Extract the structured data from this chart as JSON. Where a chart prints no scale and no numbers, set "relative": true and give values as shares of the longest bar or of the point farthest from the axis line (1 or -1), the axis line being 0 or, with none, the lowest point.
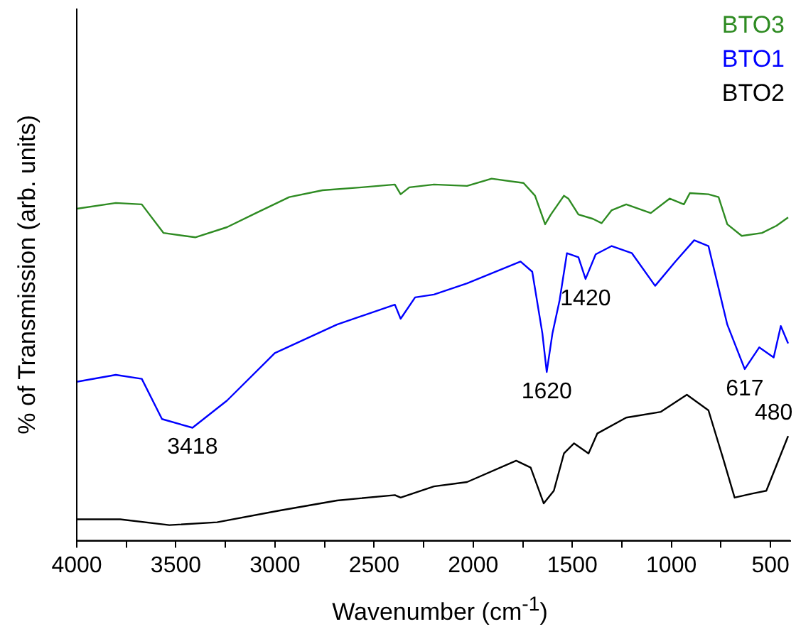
{
  "chart_data": {
    "type": "line",
    "xlabel": "Wavenumber (cm$^{-1}$)",
    "ylabel": "% of Transmission (arb. units)",
    "relative": true,
    "legend": "top right",
    "marker": "none",
    "line_style": "solid",
    "grid": false,
    "xlim": [
      4000,
      400
    ],
    "xticks": [
      4000,
      {
        "value": 3750,
        "label": null
      },
      3500,
      {
        "value": 3250,
        "label": null
      },
      3000,
      {
        "value": 2750,
        "label": null
      },
      2500,
      {
        "value": 2250,
        "label": null
      },
      2000,
      {
        "value": 1750,
        "label": null
      },
      1500,
      {
        "value": 1250,
        "label": null
      },
      1000,
      {
        "value": 750,
        "label": null
      },
      500
    ],
    "series": [
      {
        "name": "BTO3",
        "color": "#2e8b22",
        "x": [
          4000,
          3803,
          3672,
          3562,
          3402,
          3242,
          3096,
          2928,
          2760,
          2563,
          2395,
          2366,
          2322,
          2198,
          2031,
          1907,
          1746,
          1688,
          1637,
          1608,
          1542,
          1520,
          1469,
          1396,
          1352,
          1301,
          1228,
          1104,
          1009,
          937,
          907,
          813,
          762,
          718,
          645,
          543,
          470,
          411
        ],
        "values": [
          0.917,
          0.933,
          0.929,
          0.85,
          0.838,
          0.866,
          0.905,
          0.949,
          0.968,
          0.976,
          0.984,
          0.957,
          0.976,
          0.984,
          0.98,
          1,
          0.988,
          0.953,
          0.874,
          0.901,
          0.953,
          0.945,
          0.901,
          0.889,
          0.877,
          0.913,
          0.929,
          0.905,
          0.945,
          0.929,
          0.96,
          0.957,
          0.949,
          0.874,
          0.842,
          0.85,
          0.87,
          0.893
        ]
      },
      {
        "name": "BTO1",
        "color": "#0000ff",
        "x": [
          4000,
          3803,
          3672,
          3570,
          3416,
          3242,
          3001,
          2687,
          2395,
          2366,
          2293,
          2198,
          2031,
          1761,
          1702,
          1651,
          1629,
          1600,
          1564,
          1527,
          1469,
          1433,
          1382,
          1301,
          1199,
          1082,
          980,
          885,
          813,
          718,
          630,
          557,
          484,
          448,
          411
        ],
        "values": [
          0.439,
          0.458,
          0.447,
          0.336,
          0.312,
          0.387,
          0.518,
          0.597,
          0.652,
          0.613,
          0.672,
          0.68,
          0.711,
          0.771,
          0.743,
          0.573,
          0.466,
          0.573,
          0.664,
          0.794,
          0.783,
          0.723,
          0.791,
          0.814,
          0.794,
          0.704,
          0.771,
          0.83,
          0.814,
          0.597,
          0.474,
          0.534,
          0.506,
          0.593,
          0.545
        ]
      },
      {
        "name": "BTO2",
        "color": "#000000",
        "x": [
          4000,
          3781,
          3533,
          3292,
          2979,
          2687,
          2395,
          2366,
          2198,
          2031,
          1783,
          1710,
          1644,
          1593,
          1542,
          1491,
          1418,
          1374,
          1228,
          1053,
          922,
          813,
          740,
          681,
          594,
          521,
          411
        ],
        "values": [
          0.059,
          0.059,
          0.043,
          0.051,
          0.083,
          0.111,
          0.126,
          0.119,
          0.15,
          0.162,
          0.221,
          0.202,
          0.103,
          0.138,
          0.241,
          0.269,
          0.241,
          0.296,
          0.34,
          0.356,
          0.403,
          0.36,
          0.229,
          0.119,
          0.13,
          0.138,
          0.289
        ]
      }
    ],
    "annotations": [
      {
        "text": "3418",
        "x": 3416,
        "y": 0.312
      },
      {
        "text": "1620",
        "x": 1629,
        "y": 0.466
      },
      {
        "text": "1420",
        "x": 1433,
        "y": 0.723
      },
      {
        "text": "617",
        "x": 630,
        "y": 0.474
      },
      {
        "text": "480",
        "x": 484,
        "y": 0.506
      }
    ]
  }
}
